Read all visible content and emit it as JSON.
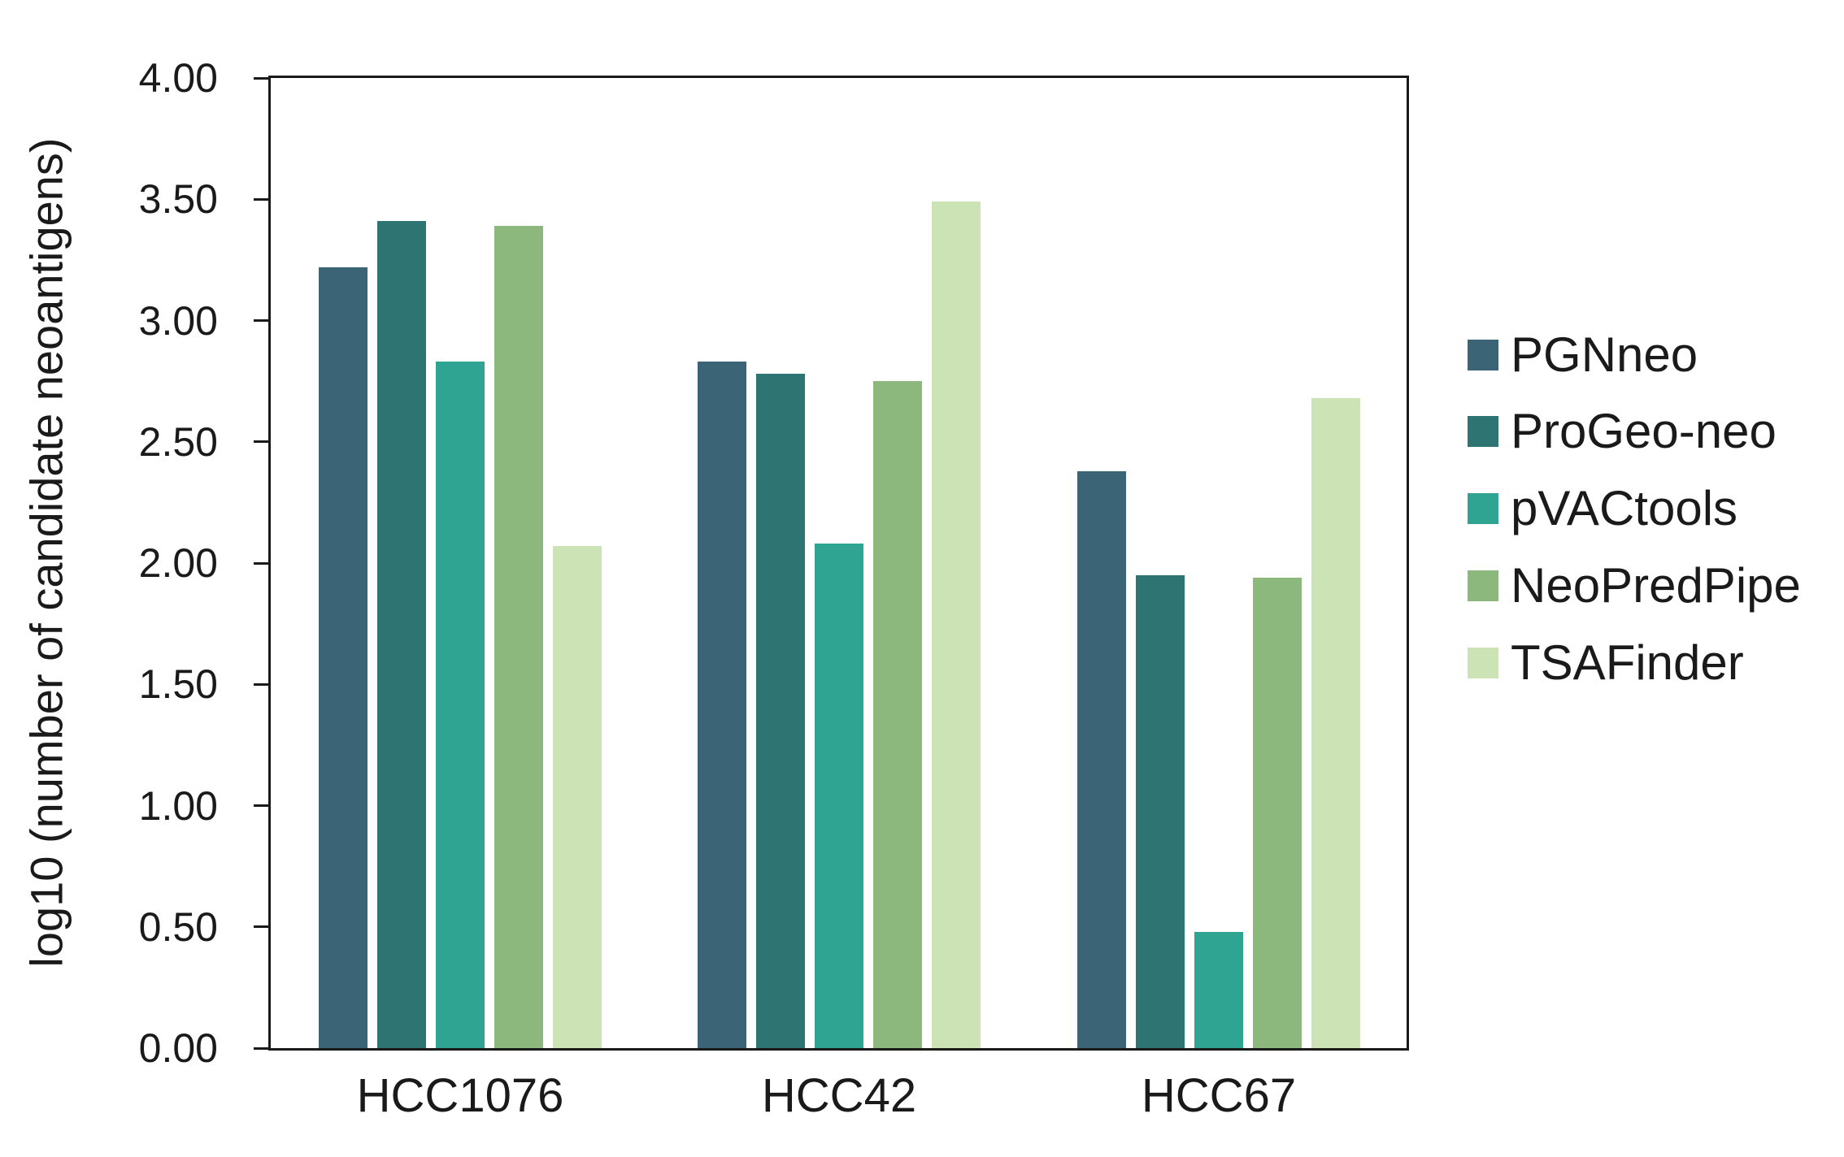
{
  "chart_data": {
    "type": "bar",
    "title": "",
    "xlabel": "",
    "ylabel": "log10 (number of candidate neoantigens)",
    "categories": [
      "HCC1076",
      "HCC42",
      "HCC67"
    ],
    "series": [
      {
        "name": "PGNneo",
        "color": "#3B6577",
        "values": [
          3.22,
          2.83,
          2.38
        ]
      },
      {
        "name": "ProGeo-neo",
        "color": "#2D7473",
        "values": [
          3.41,
          2.78,
          1.95
        ]
      },
      {
        "name": "pVACtools",
        "color": "#2FA493",
        "values": [
          2.83,
          2.08,
          0.48
        ]
      },
      {
        "name": "NeoPredPipe",
        "color": "#8CB87E",
        "values": [
          3.39,
          2.75,
          1.94
        ]
      },
      {
        "name": "TSAFinder",
        "color": "#CCE4B5",
        "values": [
          2.07,
          3.49,
          2.68
        ]
      }
    ],
    "ylim": [
      0,
      4
    ],
    "ytick_step": 0.5,
    "ytick_labels": [
      "4.00",
      "3.50",
      "3.00",
      "2.50",
      "2.00",
      "1.50",
      "1.00",
      "0.50",
      "0.00"
    ],
    "grid": false,
    "legend_position": "right",
    "axis_color": "#1a1a1a",
    "background_color": "#ffffff"
  }
}
